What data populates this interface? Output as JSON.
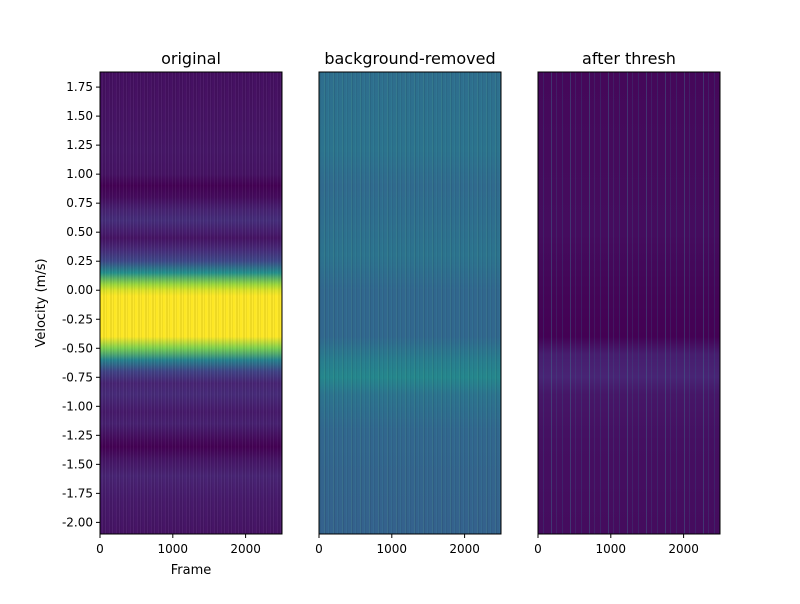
{
  "chart_data": [
    {
      "type": "heatmap",
      "title": "original",
      "xlabel": "Frame",
      "ylabel": "Velocity (m/s)",
      "xlim": [
        0,
        2500
      ],
      "ylim": [
        -2.1,
        1.88
      ],
      "x_ticks": [
        0,
        1000,
        2000
      ],
      "x_tick_labels": [
        "0",
        "1000",
        "2000"
      ],
      "y_ticks": [
        1.75,
        1.5,
        1.25,
        1.0,
        0.75,
        0.5,
        0.25,
        0.0,
        -0.25,
        -0.5,
        -0.75,
        -1.0,
        -1.25,
        -1.5,
        -1.75,
        -2.0
      ],
      "y_tick_labels": [
        "1.75",
        "1.50",
        "1.25",
        "1.00",
        "0.75",
        "0.50",
        "0.25",
        "0.00",
        "-0.25",
        "-0.50",
        "-0.75",
        "-1.00",
        "-1.25",
        "-1.50",
        "-1.75",
        "-2.00"
      ],
      "colormap": "viridis",
      "velocity_profile": [
        [
          1.88,
          0.04
        ],
        [
          1.5,
          0.05
        ],
        [
          1.2,
          0.06
        ],
        [
          1.0,
          0.05
        ],
        [
          0.9,
          0.0
        ],
        [
          0.8,
          0.03
        ],
        [
          0.7,
          0.09
        ],
        [
          0.6,
          0.13
        ],
        [
          0.5,
          0.08
        ],
        [
          0.45,
          0.05
        ],
        [
          0.35,
          0.12
        ],
        [
          0.25,
          0.22
        ],
        [
          0.15,
          0.5
        ],
        [
          0.05,
          0.85
        ],
        [
          0.0,
          0.95
        ],
        [
          -0.05,
          1.0
        ],
        [
          -0.4,
          1.0
        ],
        [
          -0.5,
          0.8
        ],
        [
          -0.6,
          0.45
        ],
        [
          -0.7,
          0.2
        ],
        [
          -0.8,
          0.1
        ],
        [
          -0.9,
          0.12
        ],
        [
          -1.05,
          0.07
        ],
        [
          -1.15,
          0.09
        ],
        [
          -1.3,
          0.02
        ],
        [
          -1.35,
          0.0
        ],
        [
          -1.45,
          0.05
        ],
        [
          -1.6,
          0.1
        ],
        [
          -1.8,
          0.07
        ],
        [
          -2.1,
          0.05
        ]
      ]
    },
    {
      "type": "heatmap",
      "title": "background-removed",
      "xlabel": "",
      "xlim": [
        0,
        2500
      ],
      "ylim": [
        -2.1,
        1.88
      ],
      "x_ticks": [
        0,
        1000,
        2000
      ],
      "x_tick_labels": [
        "0",
        "1000",
        "2000"
      ],
      "colormap": "viridis",
      "velocity_profile": [
        [
          1.88,
          0.36
        ],
        [
          1.2,
          0.38
        ],
        [
          0.9,
          0.34
        ],
        [
          0.6,
          0.36
        ],
        [
          0.3,
          0.38
        ],
        [
          0.0,
          0.33
        ],
        [
          -0.4,
          0.33
        ],
        [
          -0.6,
          0.42
        ],
        [
          -0.75,
          0.46
        ],
        [
          -0.9,
          0.38
        ],
        [
          -1.2,
          0.33
        ],
        [
          -1.6,
          0.32
        ],
        [
          -2.1,
          0.31
        ]
      ]
    },
    {
      "type": "heatmap",
      "title": "after thresh",
      "xlabel": "",
      "xlim": [
        0,
        2500
      ],
      "ylim": [
        -2.1,
        1.88
      ],
      "x_ticks": [
        0,
        1000,
        2000
      ],
      "x_tick_labels": [
        "0",
        "1000",
        "2000"
      ],
      "colormap": "viridis",
      "velocity_profile": [
        [
          1.88,
          0.02
        ],
        [
          0.5,
          0.03
        ],
        [
          0.0,
          0.01
        ],
        [
          -0.4,
          0.0
        ],
        [
          -0.55,
          0.08
        ],
        [
          -0.75,
          0.1
        ],
        [
          -0.9,
          0.06
        ],
        [
          -1.3,
          0.04
        ],
        [
          -2.1,
          0.03
        ]
      ]
    }
  ]
}
